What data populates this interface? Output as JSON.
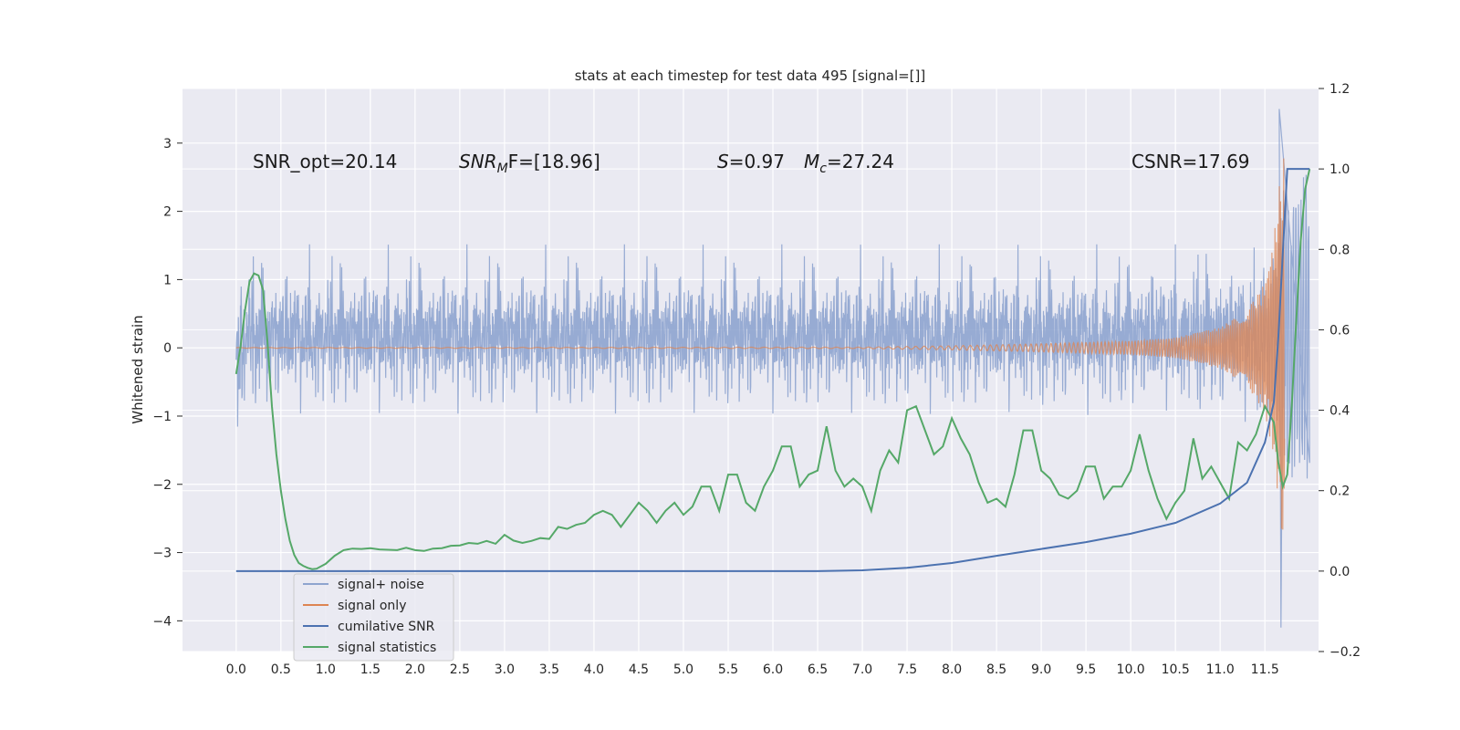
{
  "chart_data": {
    "type": "line",
    "title": "stats at each timestep for test data 495 [signal=[]]",
    "ylabel": "Whitened strain",
    "xlim": [
      -0.6,
      12.1
    ],
    "ylim": [
      -4.45,
      3.8
    ],
    "y2lim": [
      -0.2,
      1.2
    ],
    "x_ticks": [
      0.0,
      0.5,
      1.0,
      1.5,
      2.0,
      2.5,
      3.0,
      3.5,
      4.0,
      4.5,
      5.0,
      5.5,
      6.0,
      6.5,
      7.0,
      7.5,
      8.0,
      8.5,
      9.0,
      9.5,
      10.0,
      10.5,
      11.0,
      11.5
    ],
    "x_tick_labels": [
      "0.0",
      "0.5",
      "1.0",
      "1.5",
      "2.0",
      "2.5",
      "3.0",
      "3.5",
      "4.0",
      "4.5",
      "5.0",
      "5.5",
      "6.0",
      "6.5",
      "7.0",
      "7.5",
      "8.0",
      "8.5",
      "9.0",
      "9.5",
      "10.0",
      "10.5",
      "11.0",
      "11.5"
    ],
    "y_ticks": [
      3,
      2,
      1,
      0,
      -1,
      -2,
      -3,
      -4
    ],
    "y_tick_labels": [
      "3",
      "2",
      "1",
      "0",
      "−1",
      "−2",
      "−3",
      "−4"
    ],
    "y2_ticks": [
      1.2,
      1.0,
      0.8,
      0.6,
      0.4,
      0.2,
      0.0,
      -0.2
    ],
    "y2_tick_labels": [
      "1.2",
      "1.0",
      "0.8",
      "0.6",
      "0.4",
      "0.2",
      "0.0",
      "−0.2"
    ],
    "grid": true,
    "legend_position": "lower-left",
    "colors": {
      "background": "#eaeaf2",
      "grid": "#ffffff",
      "noise": "#8ea4cf",
      "signal": "#dd8452",
      "csnr": "#4c72b0",
      "stats": "#55a868"
    },
    "annotations": {
      "snr_opt": "SNR_opt=20.14",
      "snr_mf_italic": "SNR",
      "snr_mf_sub": "M",
      "snr_mf_rest": "F=[18.96]",
      "s_italic": "S",
      "s_rest": "=0.97",
      "mc_italic": "M",
      "mc_sub": "c",
      "mc_rest": "=27.24",
      "csnr": "CSNR=17.69"
    },
    "series": [
      {
        "name": "signal+ noise",
        "axis": "left",
        "description_samples": "dense noise band roughly ±1.4 with spikes to ~±2.5",
        "x_range": [
          0.0,
          12.0
        ],
        "envelope": 1.4,
        "spike_max": 3.5,
        "spike_min": -4.1
      },
      {
        "name": "signal only",
        "axis": "left",
        "x_range": [
          0.0,
          11.72
        ],
        "chirp_amplitude_points": [
          [
            0.0,
            0.005
          ],
          [
            7.0,
            0.01
          ],
          [
            8.0,
            0.03
          ],
          [
            9.0,
            0.06
          ],
          [
            10.0,
            0.1
          ],
          [
            10.5,
            0.15
          ],
          [
            11.0,
            0.3
          ],
          [
            11.3,
            0.55
          ],
          [
            11.5,
            0.95
          ],
          [
            11.6,
            1.6
          ],
          [
            11.68,
            2.6
          ],
          [
            11.72,
            3.1
          ]
        ]
      },
      {
        "name": "cumilative SNR",
        "axis": "right",
        "points": [
          [
            0.0,
            0.0
          ],
          [
            6.5,
            0.0
          ],
          [
            7.0,
            0.002
          ],
          [
            7.5,
            0.008
          ],
          [
            8.0,
            0.02
          ],
          [
            8.5,
            0.038
          ],
          [
            9.0,
            0.055
          ],
          [
            9.5,
            0.072
          ],
          [
            10.0,
            0.093
          ],
          [
            10.5,
            0.12
          ],
          [
            11.0,
            0.168
          ],
          [
            11.3,
            0.22
          ],
          [
            11.5,
            0.32
          ],
          [
            11.6,
            0.42
          ],
          [
            11.65,
            0.58
          ],
          [
            11.7,
            0.79
          ],
          [
            11.75,
            1.0
          ],
          [
            12.0,
            1.0
          ]
        ]
      },
      {
        "name": "signal statistics",
        "axis": "right",
        "points": [
          [
            0.0,
            0.49
          ],
          [
            0.05,
            0.56
          ],
          [
            0.1,
            0.65
          ],
          [
            0.15,
            0.72
          ],
          [
            0.2,
            0.74
          ],
          [
            0.25,
            0.735
          ],
          [
            0.3,
            0.7
          ],
          [
            0.35,
            0.57
          ],
          [
            0.4,
            0.41
          ],
          [
            0.45,
            0.29
          ],
          [
            0.5,
            0.2
          ],
          [
            0.55,
            0.13
          ],
          [
            0.6,
            0.075
          ],
          [
            0.65,
            0.04
          ],
          [
            0.7,
            0.02
          ],
          [
            0.75,
            0.013
          ],
          [
            0.8,
            0.008
          ],
          [
            0.85,
            0.005
          ],
          [
            0.9,
            0.006
          ],
          [
            1.0,
            0.018
          ],
          [
            1.1,
            0.038
          ],
          [
            1.2,
            0.052
          ],
          [
            1.3,
            0.056
          ],
          [
            1.4,
            0.055
          ],
          [
            1.5,
            0.057
          ],
          [
            1.6,
            0.054
          ],
          [
            1.7,
            0.053
          ],
          [
            1.8,
            0.052
          ],
          [
            1.9,
            0.058
          ],
          [
            2.0,
            0.052
          ],
          [
            2.1,
            0.05
          ],
          [
            2.2,
            0.056
          ],
          [
            2.3,
            0.057
          ],
          [
            2.4,
            0.063
          ],
          [
            2.5,
            0.064
          ],
          [
            2.6,
            0.07
          ],
          [
            2.7,
            0.068
          ],
          [
            2.8,
            0.075
          ],
          [
            2.9,
            0.068
          ],
          [
            3.0,
            0.09
          ],
          [
            3.1,
            0.076
          ],
          [
            3.2,
            0.07
          ],
          [
            3.3,
            0.075
          ],
          [
            3.4,
            0.082
          ],
          [
            3.5,
            0.08
          ],
          [
            3.6,
            0.11
          ],
          [
            3.7,
            0.105
          ],
          [
            3.8,
            0.115
          ],
          [
            3.9,
            0.12
          ],
          [
            4.0,
            0.14
          ],
          [
            4.1,
            0.15
          ],
          [
            4.2,
            0.14
          ],
          [
            4.3,
            0.11
          ],
          [
            4.4,
            0.14
          ],
          [
            4.5,
            0.17
          ],
          [
            4.6,
            0.15
          ],
          [
            4.7,
            0.12
          ],
          [
            4.8,
            0.15
          ],
          [
            4.9,
            0.17
          ],
          [
            5.0,
            0.14
          ],
          [
            5.1,
            0.16
          ],
          [
            5.2,
            0.21
          ],
          [
            5.3,
            0.21
          ],
          [
            5.4,
            0.15
          ],
          [
            5.5,
            0.24
          ],
          [
            5.6,
            0.24
          ],
          [
            5.7,
            0.17
          ],
          [
            5.8,
            0.15
          ],
          [
            5.9,
            0.21
          ],
          [
            6.0,
            0.25
          ],
          [
            6.1,
            0.31
          ],
          [
            6.2,
            0.31
          ],
          [
            6.3,
            0.21
          ],
          [
            6.4,
            0.24
          ],
          [
            6.5,
            0.25
          ],
          [
            6.6,
            0.36
          ],
          [
            6.7,
            0.25
          ],
          [
            6.8,
            0.21
          ],
          [
            6.9,
            0.23
          ],
          [
            7.0,
            0.21
          ],
          [
            7.1,
            0.15
          ],
          [
            7.2,
            0.25
          ],
          [
            7.3,
            0.3
          ],
          [
            7.4,
            0.27
          ],
          [
            7.5,
            0.4
          ],
          [
            7.6,
            0.41
          ],
          [
            7.7,
            0.35
          ],
          [
            7.8,
            0.29
          ],
          [
            7.9,
            0.31
          ],
          [
            8.0,
            0.38
          ],
          [
            8.1,
            0.33
          ],
          [
            8.2,
            0.29
          ],
          [
            8.3,
            0.22
          ],
          [
            8.4,
            0.17
          ],
          [
            8.5,
            0.18
          ],
          [
            8.6,
            0.16
          ],
          [
            8.7,
            0.24
          ],
          [
            8.8,
            0.35
          ],
          [
            8.9,
            0.35
          ],
          [
            9.0,
            0.25
          ],
          [
            9.1,
            0.23
          ],
          [
            9.2,
            0.19
          ],
          [
            9.3,
            0.18
          ],
          [
            9.4,
            0.2
          ],
          [
            9.5,
            0.26
          ],
          [
            9.6,
            0.26
          ],
          [
            9.7,
            0.18
          ],
          [
            9.8,
            0.21
          ],
          [
            9.9,
            0.21
          ],
          [
            10.0,
            0.25
          ],
          [
            10.1,
            0.34
          ],
          [
            10.2,
            0.25
          ],
          [
            10.3,
            0.18
          ],
          [
            10.4,
            0.13
          ],
          [
            10.5,
            0.17
          ],
          [
            10.6,
            0.2
          ],
          [
            10.7,
            0.33
          ],
          [
            10.8,
            0.23
          ],
          [
            10.9,
            0.26
          ],
          [
            11.0,
            0.22
          ],
          [
            11.1,
            0.18
          ],
          [
            11.2,
            0.32
          ],
          [
            11.3,
            0.3
          ],
          [
            11.4,
            0.34
          ],
          [
            11.5,
            0.41
          ],
          [
            11.6,
            0.37
          ],
          [
            11.65,
            0.27
          ],
          [
            11.7,
            0.21
          ],
          [
            11.75,
            0.24
          ],
          [
            11.8,
            0.41
          ],
          [
            11.85,
            0.62
          ],
          [
            11.9,
            0.82
          ],
          [
            11.95,
            0.95
          ],
          [
            12.0,
            1.0
          ]
        ]
      }
    ],
    "legend": [
      {
        "label": "signal+ noise",
        "color": "#8ea4cf"
      },
      {
        "label": "signal only",
        "color": "#dd8452"
      },
      {
        "label": "cumilative SNR",
        "color": "#4c72b0"
      },
      {
        "label": "signal statistics",
        "color": "#55a868"
      }
    ]
  }
}
